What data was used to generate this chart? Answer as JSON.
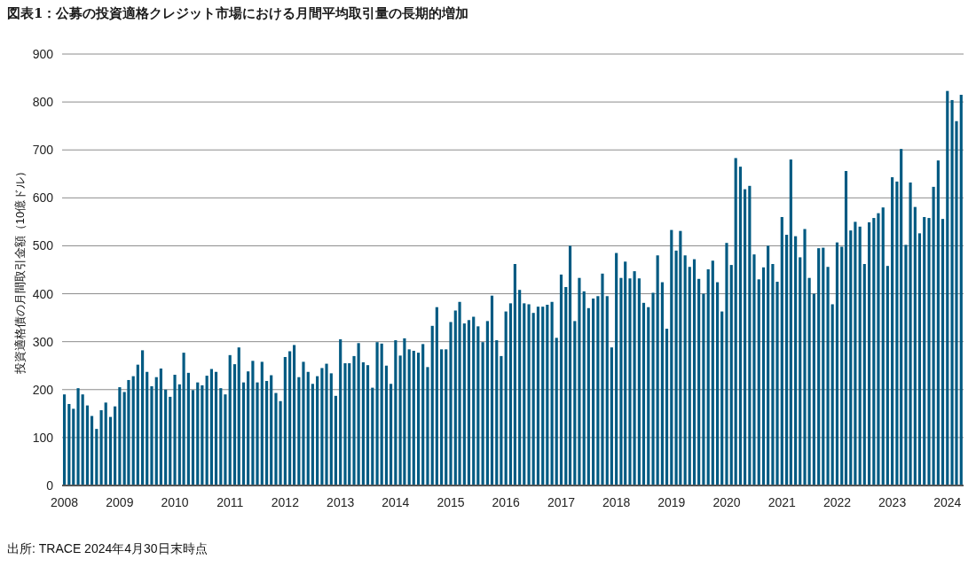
{
  "chart_data": {
    "type": "bar",
    "title": "図表1：公募の投資適格クレジット市場における月間平均取引量の長期的増加",
    "ylabel": "投資適格債の月間取引金額（10億ドル）",
    "annotations": [
      "出所: TRACE  2024年4月30日末時点"
    ],
    "x": [
      "2008-01",
      "2008-02",
      "2008-03",
      "2008-04",
      "2008-05",
      "2008-06",
      "2008-07",
      "2008-08",
      "2008-09",
      "2008-10",
      "2008-11",
      "2008-12",
      "2009-01",
      "2009-02",
      "2009-03",
      "2009-04",
      "2009-05",
      "2009-06",
      "2009-07",
      "2009-08",
      "2009-09",
      "2009-10",
      "2009-11",
      "2009-12",
      "2010-01",
      "2010-02",
      "2010-03",
      "2010-04",
      "2010-05",
      "2010-06",
      "2010-07",
      "2010-08",
      "2010-09",
      "2010-10",
      "2010-11",
      "2010-12",
      "2011-01",
      "2011-02",
      "2011-03",
      "2011-04",
      "2011-05",
      "2011-06",
      "2011-07",
      "2011-08",
      "2011-09",
      "2011-10",
      "2011-11",
      "2011-12",
      "2012-01",
      "2012-02",
      "2012-03",
      "2012-04",
      "2012-05",
      "2012-06",
      "2012-07",
      "2012-08",
      "2012-09",
      "2012-10",
      "2012-11",
      "2012-12",
      "2013-01",
      "2013-02",
      "2013-03",
      "2013-04",
      "2013-05",
      "2013-06",
      "2013-07",
      "2013-08",
      "2013-09",
      "2013-10",
      "2013-11",
      "2013-12",
      "2014-01",
      "2014-02",
      "2014-03",
      "2014-04",
      "2014-05",
      "2014-06",
      "2014-07",
      "2014-08",
      "2014-09",
      "2014-10",
      "2014-11",
      "2014-12",
      "2015-01",
      "2015-02",
      "2015-03",
      "2015-04",
      "2015-05",
      "2015-06",
      "2015-07",
      "2015-08",
      "2015-09",
      "2015-10",
      "2015-11",
      "2015-12",
      "2016-01",
      "2016-02",
      "2016-03",
      "2016-04",
      "2016-05",
      "2016-06",
      "2016-07",
      "2016-08",
      "2016-09",
      "2016-10",
      "2016-11",
      "2016-12",
      "2017-01",
      "2017-02",
      "2017-03",
      "2017-04",
      "2017-05",
      "2017-06",
      "2017-07",
      "2017-08",
      "2017-09",
      "2017-10",
      "2017-11",
      "2017-12",
      "2018-01",
      "2018-02",
      "2018-03",
      "2018-04",
      "2018-05",
      "2018-06",
      "2018-07",
      "2018-08",
      "2018-09",
      "2018-10",
      "2018-11",
      "2018-12",
      "2019-01",
      "2019-02",
      "2019-03",
      "2019-04",
      "2019-05",
      "2019-06",
      "2019-07",
      "2019-08",
      "2019-09",
      "2019-10",
      "2019-11",
      "2019-12",
      "2020-01",
      "2020-02",
      "2020-03",
      "2020-04",
      "2020-05",
      "2020-06",
      "2020-07",
      "2020-08",
      "2020-09",
      "2020-10",
      "2020-11",
      "2020-12",
      "2021-01",
      "2021-02",
      "2021-03",
      "2021-04",
      "2021-05",
      "2021-06",
      "2021-07",
      "2021-08",
      "2021-09",
      "2021-10",
      "2021-11",
      "2021-12",
      "2022-01",
      "2022-02",
      "2022-03",
      "2022-04",
      "2022-05",
      "2022-06",
      "2022-07",
      "2022-08",
      "2022-09",
      "2022-10",
      "2022-11",
      "2022-12",
      "2023-01",
      "2023-02",
      "2023-03",
      "2023-04",
      "2023-05",
      "2023-06",
      "2023-07",
      "2023-08",
      "2023-09",
      "2023-10",
      "2023-11",
      "2023-12",
      "2024-01",
      "2024-02",
      "2024-03",
      "2024-04"
    ],
    "values": [
      190,
      170,
      160,
      203,
      190,
      167,
      145,
      118,
      157,
      173,
      143,
      165,
      205,
      195,
      220,
      228,
      252,
      282,
      237,
      207,
      226,
      244,
      200,
      185,
      231,
      211,
      277,
      235,
      199,
      215,
      209,
      229,
      243,
      237,
      203,
      190,
      272,
      253,
      288,
      215,
      238,
      260,
      215,
      258,
      218,
      230,
      193,
      176,
      268,
      280,
      293,
      226,
      258,
      237,
      212,
      228,
      245,
      254,
      234,
      187,
      305,
      255,
      255,
      270,
      297,
      257,
      251,
      204,
      299,
      296,
      250,
      212,
      303,
      271,
      307,
      284,
      281,
      277,
      295,
      247,
      333,
      372,
      284,
      284,
      341,
      365,
      383,
      338,
      345,
      352,
      332,
      299,
      343,
      396,
      303,
      270,
      363,
      380,
      462,
      408,
      380,
      378,
      360,
      373,
      373,
      377,
      383,
      308,
      440,
      414,
      500,
      343,
      433,
      405,
      370,
      390,
      395,
      442,
      395,
      288,
      485,
      433,
      467,
      432,
      447,
      432,
      381,
      372,
      402,
      480,
      424,
      327,
      533,
      490,
      531,
      480,
      456,
      472,
      431,
      400,
      451,
      469,
      424,
      363,
      506,
      460,
      683,
      665,
      618,
      625,
      482,
      430,
      455,
      500,
      462,
      425,
      560,
      523,
      680,
      520,
      476,
      535,
      433,
      400,
      495,
      496,
      456,
      378,
      507,
      498,
      656,
      532,
      550,
      540,
      462,
      549,
      558,
      568,
      580,
      458,
      643,
      634,
      702,
      502,
      632,
      581,
      526,
      560,
      558,
      623,
      678,
      556,
      823,
      804,
      760,
      815
    ],
    "color": "#005a82",
    "xlim": [
      "2007-12-17",
      "2024-04-17"
    ],
    "xticks": [
      "2008",
      "2009",
      "2010",
      "2011",
      "2012",
      "2013",
      "2014",
      "2015",
      "2016",
      "2017",
      "2018",
      "2019",
      "2020",
      "2021",
      "2022",
      "2023",
      "2024"
    ],
    "ylim": [
      0,
      900
    ],
    "yticks": [
      0,
      100,
      200,
      300,
      400,
      500,
      600,
      700,
      800,
      900
    ],
    "grid": "y"
  }
}
